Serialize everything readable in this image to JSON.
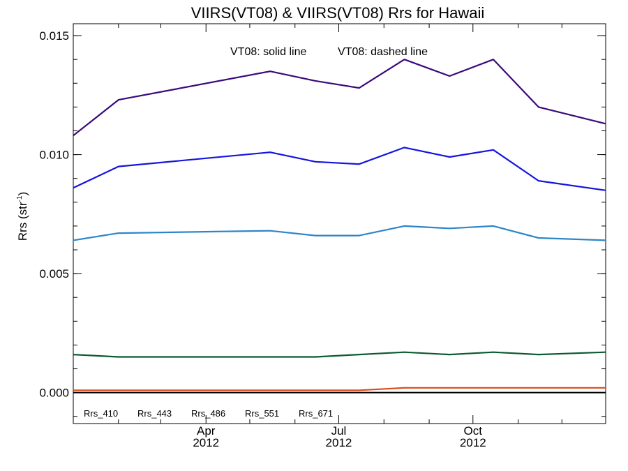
{
  "chart_data": {
    "type": "line",
    "title": "VIIRS(VT08) & VIIRS(VT08)  Rrs for Hawaii",
    "ylabel": "Rrs (str",
    "ylabel_sup": "-1",
    "ylabel_close": ")",
    "annotation_solid": "VT08: solid line",
    "annotation_dashed": "VT08: dashed line",
    "ylim": [
      -0.0013,
      0.0155
    ],
    "yticks": [
      {
        "value": 0.0,
        "label": "0.000"
      },
      {
        "value": 0.005,
        "label": "0.005"
      },
      {
        "value": 0.01,
        "label": "0.010"
      },
      {
        "value": 0.015,
        "label": "0.015"
      }
    ],
    "yminor_step": 0.001,
    "xlim": [
      "2012-01-01",
      "2012-12-31"
    ],
    "xticks": [
      {
        "date": "2012-04-01",
        "month": "Apr",
        "year": "2012"
      },
      {
        "date": "2012-07-01",
        "month": "Jul",
        "year": "2012"
      },
      {
        "date": "2012-10-01",
        "month": "Oct",
        "year": "2012"
      }
    ],
    "xminor_months": [
      "2012-02-01",
      "2012-03-01",
      "2012-05-01",
      "2012-06-01",
      "2012-08-01",
      "2012-09-01",
      "2012-11-01",
      "2012-12-01"
    ],
    "x": [
      "2012-01-01",
      "2012-02-01",
      "2012-05-15",
      "2012-06-15",
      "2012-07-15",
      "2012-08-15",
      "2012-09-15",
      "2012-10-15",
      "2012-11-15",
      "2012-12-31"
    ],
    "series": [
      {
        "name": "Rrs_410",
        "color": "#3a0a7a",
        "values": [
          0.0108,
          0.0123,
          0.0135,
          0.0131,
          0.0128,
          0.014,
          0.0133,
          0.014,
          0.012,
          0.0113
        ]
      },
      {
        "name": "Rrs_443",
        "color": "#1414e0",
        "values": [
          0.0086,
          0.0095,
          0.0101,
          0.0097,
          0.0096,
          0.0103,
          0.0099,
          0.0102,
          0.0089,
          0.0085
        ]
      },
      {
        "name": "Rrs_486",
        "color": "#2e86c8",
        "values": [
          0.0064,
          0.0067,
          0.0068,
          0.0066,
          0.0066,
          0.007,
          0.0069,
          0.007,
          0.0065,
          0.0064
        ]
      },
      {
        "name": "Rrs_551",
        "color": "#0a5a30",
        "values": [
          0.0016,
          0.0015,
          0.0015,
          0.0015,
          0.0016,
          0.0017,
          0.0016,
          0.0017,
          0.0016,
          0.0017
        ]
      },
      {
        "name": "Rrs_671",
        "color": "#d84a1a",
        "values": [
          0.0001,
          0.0001,
          0.0001,
          0.0001,
          0.0001,
          0.0002,
          0.0002,
          0.0002,
          0.0002,
          0.0002
        ]
      }
    ],
    "zero_line": 0.0,
    "legend_placement": "bottom-left",
    "grid": false
  }
}
